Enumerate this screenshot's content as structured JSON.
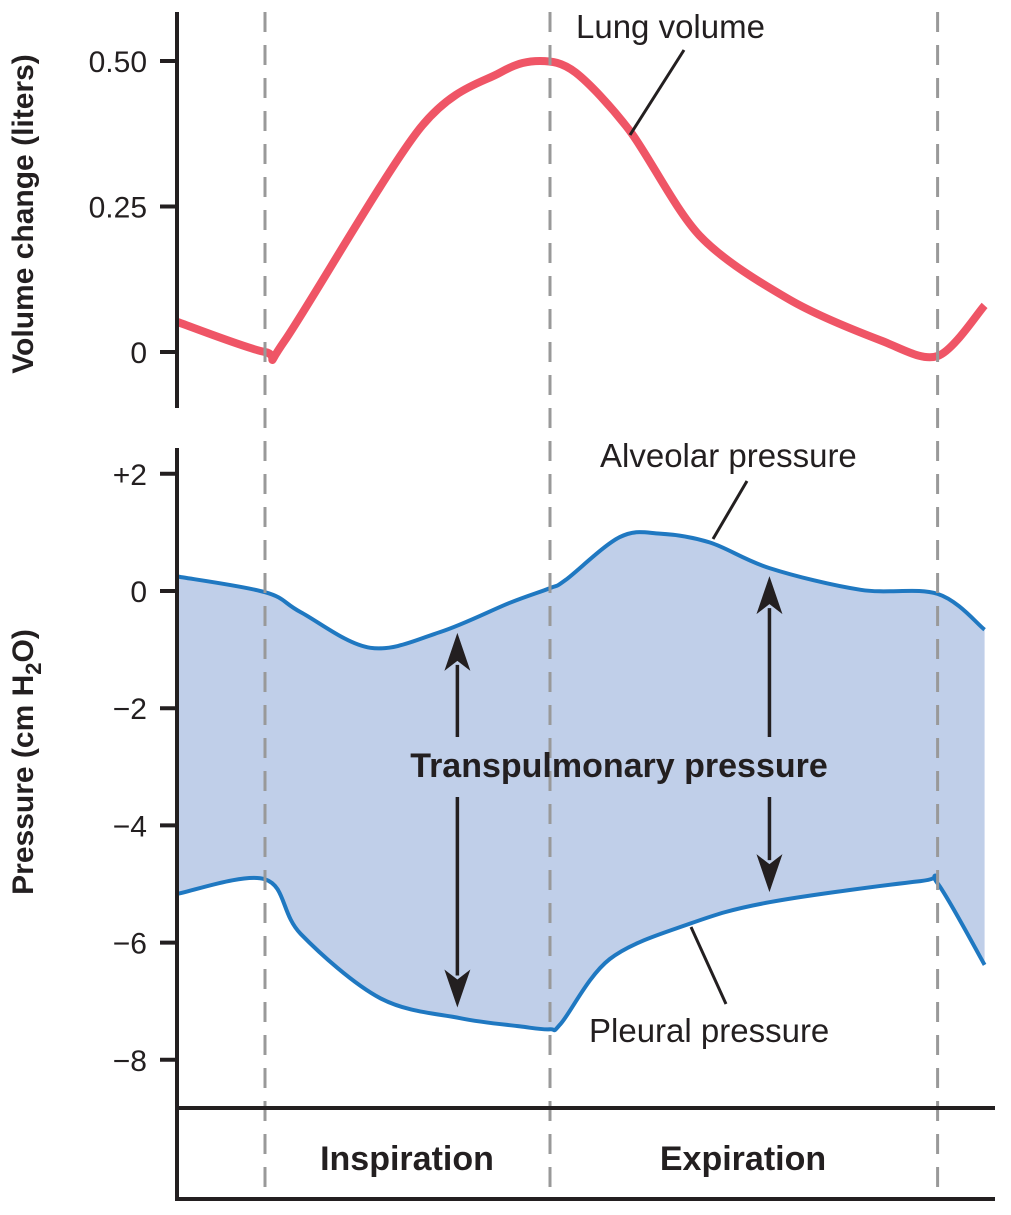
{
  "chart_data": [
    {
      "type": "line",
      "title": "",
      "ylabel": "Volume change (liters)",
      "xlabel": "",
      "ylim": [
        -0.1,
        0.6
      ],
      "yticks": [
        0,
        0.25,
        0.5
      ],
      "ytick_labels": [
        "0",
        "0.25",
        "0.50"
      ],
      "grid": false,
      "series": [
        {
          "name": "Lung volume",
          "color": "#ef5566",
          "x": [
            -0.62,
            0,
            0.14,
            1.09,
            1.65,
            1.93,
            2.18,
            2.56,
            3.05,
            3.68,
            4.32,
            4.72,
            5.05
          ],
          "y": [
            0.052,
            0,
            0.02,
            0.385,
            0.48,
            0.5,
            0.48,
            0.38,
            0.2,
            0.09,
            0.02,
            -0.007,
            0.08
          ]
        }
      ],
      "annotations": [
        {
          "text": "Lung volume",
          "target_series": "Lung volume",
          "at_x": 2.56
        }
      ]
    },
    {
      "type": "area",
      "title": "",
      "ylabel_parts": [
        "Pressure (cm H",
        "2",
        "O)"
      ],
      "ylabel": "Pressure (cm H2O)",
      "xlabel": "",
      "ylim": [
        -8.8,
        2.5
      ],
      "yticks": [
        2,
        0,
        -2,
        -4,
        -6,
        -8
      ],
      "ytick_labels": [
        "+2",
        "0",
        "−2",
        "−4",
        "−6",
        "−8"
      ],
      "grid": false,
      "fill_color": "#c0cfe9",
      "series": [
        {
          "name": "Alveolar pressure",
          "color": "#1f78c1",
          "x": [
            -0.62,
            0,
            0.25,
            0.74,
            1.23,
            1.72,
            2,
            2.11,
            2.49,
            2.77,
            3.12,
            3.54,
            4.18,
            4.72,
            5.05
          ],
          "y": [
            0.25,
            -0.02,
            -0.36,
            -0.97,
            -0.7,
            -0.2,
            0.05,
            0.19,
            0.92,
            0.98,
            0.83,
            0.39,
            0.02,
            -0.05,
            -0.66
          ]
        },
        {
          "name": "Pleural pressure",
          "color": "#1f78c1",
          "x": [
            -0.62,
            0,
            0.25,
            0.81,
            1.37,
            1.79,
            2,
            2.08,
            2.42,
            2.98,
            3.54,
            4.6,
            4.72,
            5.05
          ],
          "y": [
            -5.17,
            -4.92,
            -5.85,
            -6.95,
            -7.29,
            -7.43,
            -7.48,
            -7.37,
            -6.28,
            -5.68,
            -5.31,
            -4.95,
            -4.99,
            -6.38
          ]
        }
      ],
      "filled_region": {
        "between": [
          "Alveolar pressure",
          "Pleural pressure"
        ],
        "label": "Transpulmonary pressure"
      },
      "annotations": [
        {
          "text": "Alveolar pressure",
          "target_series": "Alveolar pressure",
          "at_x": 3.0
        },
        {
          "text": "Pleural pressure",
          "target_series": "Pleural pressure",
          "at_x": 2.9
        },
        {
          "text": "Transpulmonary pressure",
          "bold": true
        }
      ],
      "double_arrows": [
        {
          "x": 1.35,
          "from": "Alveolar pressure",
          "to": "Pleural pressure"
        },
        {
          "x": 3.54,
          "from": "Alveolar pressure",
          "to": "Pleural pressure"
        }
      ]
    }
  ],
  "time_axis": {
    "xlim": [
      -0.62,
      5.05
    ],
    "phase_boundaries": [
      0,
      2,
      4.72
    ],
    "phases": [
      {
        "label": "Inspiration",
        "start": 0,
        "end": 2
      },
      {
        "label": "Expiration",
        "start": 2,
        "end": 4.72
      }
    ]
  },
  "colors": {
    "axis": "#231f20",
    "dashed": "#999999",
    "volume": "#ef5566",
    "pressure_line": "#1f78c1",
    "pressure_fill": "#c0cfe9"
  }
}
